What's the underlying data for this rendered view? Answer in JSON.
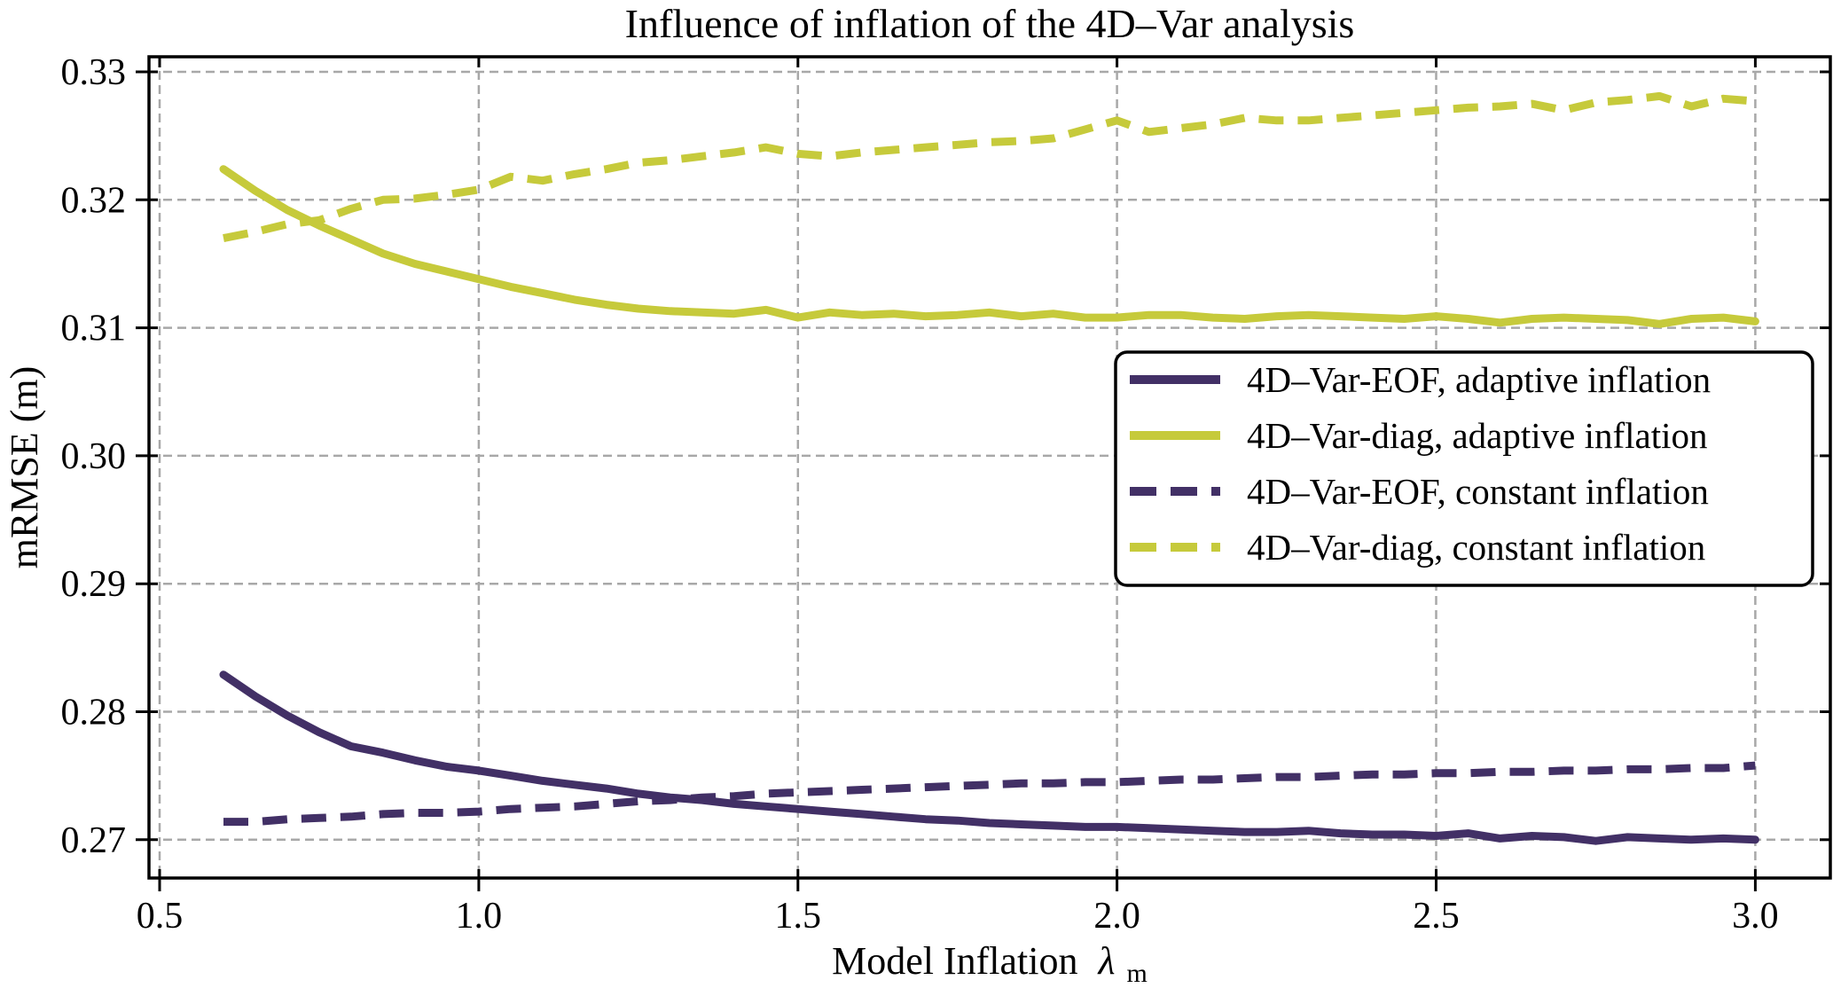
{
  "chart_data": {
    "type": "line",
    "title": "Influence of inflation of the 4D–Var analysis",
    "xlabel": {
      "text": "Model Inflation",
      "symbol": "λ",
      "subscript": "m"
    },
    "ylabel": "mRMSE (m)",
    "xlim": [
      0.483,
      3.118
    ],
    "ylim": [
      0.267,
      0.3312
    ],
    "grid": true,
    "grid_style": "dashed",
    "legend_position": "center right",
    "x_tick_labels": [
      "0.5",
      "1.0",
      "1.5",
      "2.0",
      "2.5",
      "3.0"
    ],
    "x_tick_values": [
      0.5,
      1.0,
      1.5,
      2.0,
      2.5,
      3.0
    ],
    "y_tick_labels": [
      "0.27",
      "0.28",
      "0.29",
      "0.30",
      "0.31",
      "0.32",
      "0.33"
    ],
    "y_tick_values": [
      0.27,
      0.28,
      0.29,
      0.3,
      0.31,
      0.32,
      0.33
    ],
    "colors": {
      "purple": "#423066",
      "yellow": "#c6ca3b",
      "grid": "#a8a8a8",
      "spine": "#000000"
    },
    "x": [
      0.6,
      0.65,
      0.7,
      0.75,
      0.8,
      0.85,
      0.9,
      0.95,
      1.0,
      1.05,
      1.1,
      1.15,
      1.2,
      1.25,
      1.3,
      1.35,
      1.4,
      1.45,
      1.5,
      1.55,
      1.6,
      1.65,
      1.7,
      1.75,
      1.8,
      1.85,
      1.9,
      1.95,
      2.0,
      2.05,
      2.1,
      2.15,
      2.2,
      2.25,
      2.3,
      2.35,
      2.4,
      2.45,
      2.5,
      2.55,
      2.6,
      2.65,
      2.7,
      2.75,
      2.8,
      2.85,
      2.9,
      2.95,
      3.0
    ],
    "series": [
      {
        "name": "4D–Var-EOF, adaptive inflation",
        "color_key": "purple",
        "style": "solid",
        "values": [
          0.2829,
          0.2812,
          0.2797,
          0.2784,
          0.2773,
          0.2768,
          0.2762,
          0.2757,
          0.2754,
          0.275,
          0.2746,
          0.2743,
          0.274,
          0.2736,
          0.2733,
          0.2731,
          0.2728,
          0.2726,
          0.2724,
          0.2722,
          0.272,
          0.2718,
          0.2716,
          0.2715,
          0.2713,
          0.2712,
          0.2711,
          0.271,
          0.271,
          0.2709,
          0.2708,
          0.2707,
          0.2706,
          0.2706,
          0.2707,
          0.2705,
          0.2704,
          0.2704,
          0.2703,
          0.2705,
          0.2701,
          0.2703,
          0.2702,
          0.2699,
          0.2702,
          0.2701,
          0.27,
          0.2701,
          0.27
        ]
      },
      {
        "name": "4D–Var-diag, adaptive inflation",
        "color_key": "yellow",
        "style": "solid",
        "values": [
          0.3224,
          0.3207,
          0.3192,
          0.318,
          0.3169,
          0.3158,
          0.315,
          0.3144,
          0.3138,
          0.3132,
          0.3127,
          0.3122,
          0.3118,
          0.3115,
          0.3113,
          0.3112,
          0.3111,
          0.3114,
          0.3108,
          0.3112,
          0.311,
          0.3111,
          0.3109,
          0.311,
          0.3112,
          0.3109,
          0.3111,
          0.3108,
          0.3108,
          0.311,
          0.311,
          0.3108,
          0.3107,
          0.3109,
          0.311,
          0.3109,
          0.3108,
          0.3107,
          0.3109,
          0.3107,
          0.3104,
          0.3107,
          0.3108,
          0.3107,
          0.3106,
          0.3103,
          0.3107,
          0.3108,
          0.3105
        ]
      },
      {
        "name": "4D–Var-EOF, constant inflation",
        "color_key": "purple",
        "style": "dashed",
        "values": [
          0.2714,
          0.2714,
          0.2716,
          0.2717,
          0.2718,
          0.272,
          0.2721,
          0.2721,
          0.2722,
          0.2724,
          0.2725,
          0.2726,
          0.2728,
          0.273,
          0.2731,
          0.2733,
          0.2734,
          0.2736,
          0.2737,
          0.2738,
          0.2739,
          0.274,
          0.2741,
          0.2742,
          0.2743,
          0.2744,
          0.2744,
          0.2745,
          0.2745,
          0.2746,
          0.2747,
          0.2747,
          0.2748,
          0.2749,
          0.2749,
          0.275,
          0.2751,
          0.2751,
          0.2752,
          0.2752,
          0.2753,
          0.2753,
          0.2754,
          0.2754,
          0.2755,
          0.2755,
          0.2756,
          0.2756,
          0.2758
        ]
      },
      {
        "name": "4D–Var-diag, constant inflation",
        "color_key": "yellow",
        "style": "dashed",
        "values": [
          0.317,
          0.3175,
          0.3181,
          0.3184,
          0.3193,
          0.32,
          0.3201,
          0.3204,
          0.3208,
          0.3218,
          0.3215,
          0.322,
          0.3224,
          0.3229,
          0.3231,
          0.3234,
          0.3237,
          0.3241,
          0.3236,
          0.3234,
          0.3237,
          0.3239,
          0.3241,
          0.3243,
          0.3245,
          0.3246,
          0.3248,
          0.3255,
          0.3262,
          0.3253,
          0.3256,
          0.3259,
          0.3264,
          0.3262,
          0.3262,
          0.3264,
          0.3266,
          0.3268,
          0.327,
          0.3272,
          0.3273,
          0.3275,
          0.327,
          0.3276,
          0.3278,
          0.3281,
          0.3273,
          0.3279,
          0.3277
        ]
      }
    ]
  }
}
